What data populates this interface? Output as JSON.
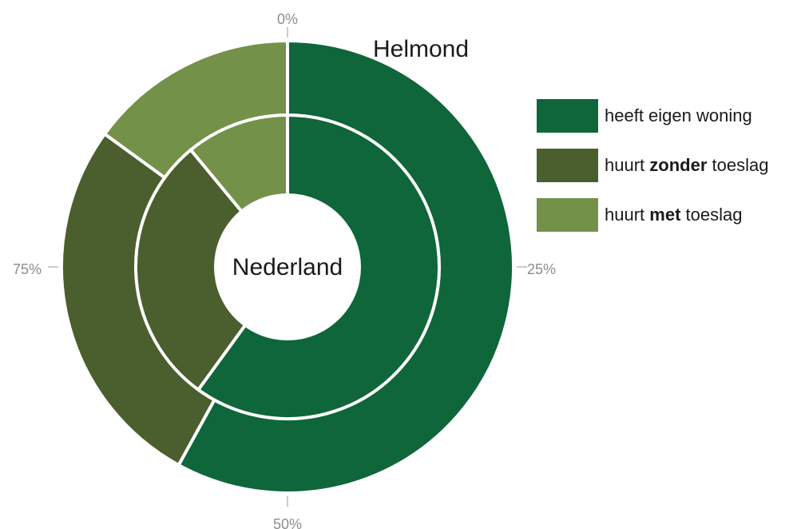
{
  "chart_data": {
    "type": "donut",
    "rings": [
      {
        "name": "Helmond",
        "position": "outer",
        "values": [
          58.0,
          27.0,
          15.0
        ]
      },
      {
        "name": "Nederland",
        "position": "inner",
        "values": [
          60.0,
          29.0,
          11.0
        ]
      }
    ],
    "categories": [
      {
        "pre": "heeft eigen woning",
        "bold": "",
        "post": "",
        "color": "#0e663a"
      },
      {
        "pre": "huurt ",
        "bold": "zonder",
        "post": " toeslag",
        "color": "#4b5e2d"
      },
      {
        "pre": "huurt ",
        "bold": "met",
        "post": " toeslag",
        "color": "#739148"
      }
    ],
    "ticks": [
      "0%",
      "25%",
      "50%",
      "75%"
    ]
  }
}
